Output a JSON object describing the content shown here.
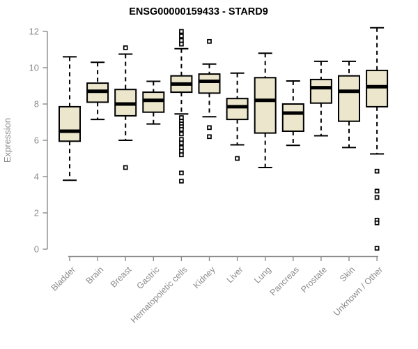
{
  "window": {
    "title": "ENSG00000159433 - STARD9"
  },
  "colors": {
    "background": "#ffffff",
    "box_fill": "#ece7cc",
    "box_stroke": "#000000",
    "median_stroke": "#000000",
    "whisker_stroke": "#000000",
    "outlier_stroke": "#000000",
    "outlier_fill": "#ffffff",
    "axis": "#8c8c8c",
    "tick_label": "#8c8c8c",
    "title_color": "#000000"
  },
  "chart_data": {
    "type": "boxplot",
    "title": "ENSG00000159433 - STARD9",
    "subtitle": "",
    "xlabel": "",
    "ylabel": "Expression",
    "ylim": [
      0,
      12
    ],
    "yticks": [
      0,
      2,
      4,
      6,
      8,
      10,
      12
    ],
    "grid": false,
    "legend_position": "none",
    "categories": [
      "Bladder",
      "Brain",
      "Breast",
      "Gastric",
      "Hematopoietic cells",
      "Kidney",
      "Liver",
      "Lung",
      "Pancreas",
      "Prostate",
      "Skin",
      "Unknown / Other"
    ],
    "series": [
      {
        "name": "Bladder",
        "low": 3.8,
        "q1": 5.95,
        "median": 6.5,
        "q3": 7.85,
        "high": 10.6,
        "outliers": []
      },
      {
        "name": "Brain",
        "low": 7.15,
        "q1": 8.1,
        "median": 8.7,
        "q3": 9.15,
        "high": 10.3,
        "outliers": []
      },
      {
        "name": "Breast",
        "low": 6.0,
        "q1": 7.35,
        "median": 8.0,
        "q3": 8.8,
        "high": 10.75,
        "outliers": [
          11.1,
          4.5
        ]
      },
      {
        "name": "Gastric",
        "low": 6.9,
        "q1": 7.55,
        "median": 8.2,
        "q3": 8.65,
        "high": 9.25,
        "outliers": []
      },
      {
        "name": "Hematopoietic cells",
        "low": 7.45,
        "q1": 8.65,
        "median": 9.1,
        "q3": 9.55,
        "high": 11.05,
        "outliers": [
          12.0,
          11.75,
          11.5,
          11.3,
          7.25,
          7.05,
          6.9,
          6.75,
          6.6,
          6.35,
          6.05,
          5.85,
          5.6,
          5.4,
          5.2,
          4.2,
          3.75
        ]
      },
      {
        "name": "Kidney",
        "low": 7.3,
        "q1": 8.6,
        "median": 9.25,
        "q3": 9.65,
        "high": 10.2,
        "outliers": [
          11.45,
          6.7,
          6.2
        ]
      },
      {
        "name": "Liver",
        "low": 5.75,
        "q1": 7.15,
        "median": 7.85,
        "q3": 8.3,
        "high": 9.7,
        "outliers": [
          5.0
        ]
      },
      {
        "name": "Lung",
        "low": 4.5,
        "q1": 6.4,
        "median": 8.2,
        "q3": 9.45,
        "high": 10.8,
        "outliers": []
      },
      {
        "name": "Pancreas",
        "low": 5.72,
        "q1": 6.5,
        "median": 7.5,
        "q3": 8.0,
        "high": 9.27,
        "outliers": []
      },
      {
        "name": "Prostate",
        "low": 6.25,
        "q1": 8.05,
        "median": 8.9,
        "q3": 9.35,
        "high": 10.35,
        "outliers": []
      },
      {
        "name": "Skin",
        "low": 5.6,
        "q1": 7.05,
        "median": 8.7,
        "q3": 9.55,
        "high": 10.35,
        "outliers": []
      },
      {
        "name": "Unknown / Other",
        "low": 5.25,
        "q1": 7.85,
        "median": 8.95,
        "q3": 9.85,
        "high": 12.2,
        "outliers": [
          4.3,
          3.2,
          2.85,
          1.6,
          1.45,
          0.05
        ]
      }
    ]
  }
}
